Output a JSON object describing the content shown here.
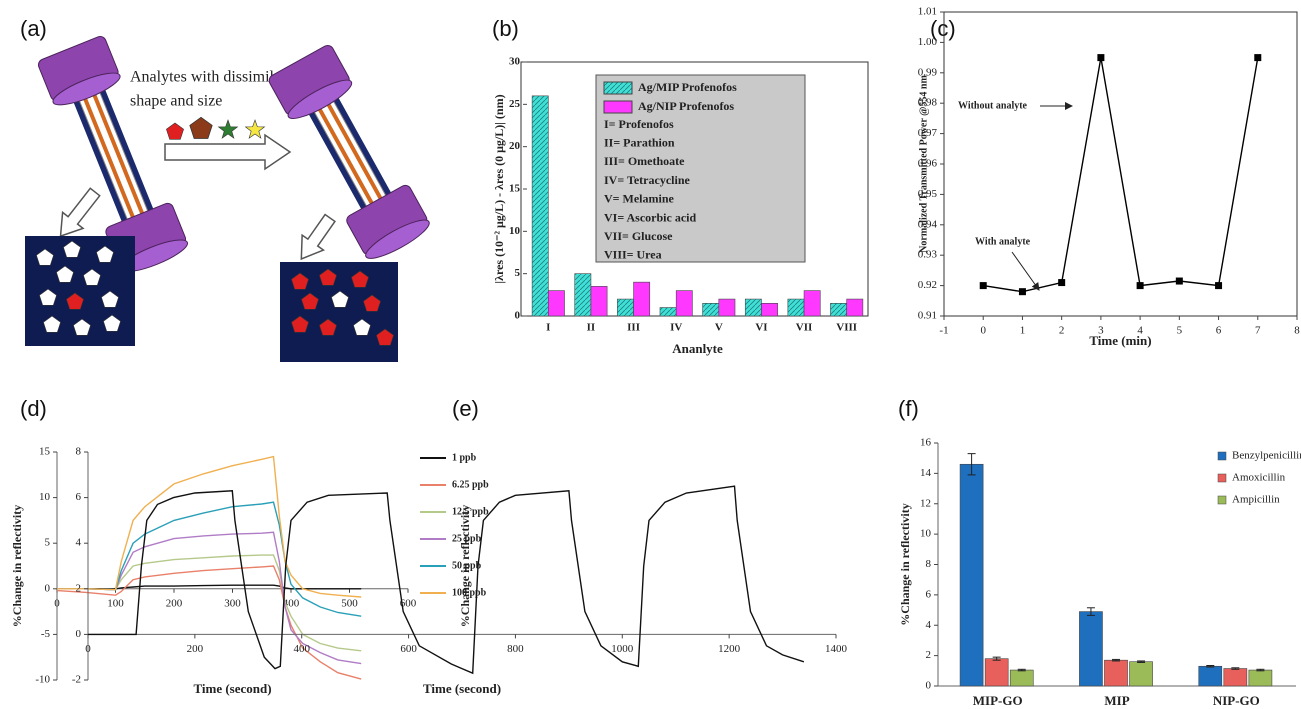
{
  "diagram": {
    "panel_label": "(a)",
    "caption": [
      "Analytes with dissimilar",
      "shape and size"
    ]
  },
  "chart_data": [
    {
      "type": "bar",
      "panel_label": "(b)",
      "ylabel": "|λres (10⁻² μg/L) - λres (0 μg/L)| (nm)",
      "xlabel": "Ananlyte",
      "categories": [
        "I",
        "II",
        "III",
        "IV",
        "V",
        "VI",
        "VII",
        "VIII"
      ],
      "series": [
        {
          "name": "Ag/MIP Profenofos",
          "color": "#3ee0d8",
          "hatch": true,
          "values": [
            26,
            5,
            2,
            1,
            1.5,
            2,
            2,
            1.5
          ]
        },
        {
          "name": "Ag/NIP Profenofos",
          "color": "#ff38ff",
          "values": [
            3,
            3.5,
            4,
            3,
            2,
            1.5,
            3,
            2
          ]
        }
      ],
      "legend_notes": [
        "I= Profenofos",
        "II= Parathion",
        "III= Omethoate",
        "IV= Tetracycline",
        "V= Melamine",
        "VI= Ascorbic acid",
        "VII= Glucose",
        "VIII= Urea"
      ],
      "ylim": [
        0,
        30
      ],
      "yticks": [
        0,
        5,
        10,
        15,
        20,
        25,
        30
      ]
    },
    {
      "type": "line",
      "panel_label": "(c)",
      "ylabel": "Normalized Transmitted Power @554 nm",
      "xlabel": "Time (min)",
      "x": [
        0,
        1,
        2,
        3,
        4,
        5,
        6,
        7
      ],
      "series": [
        {
          "color": "#000000",
          "marker": "square",
          "values": [
            0.92,
            0.918,
            0.921,
            0.995,
            0.92,
            0.9215,
            0.92,
            0.995
          ]
        }
      ],
      "annotations": [
        "Without analyte",
        "With analyte"
      ],
      "xlim": [
        -1,
        8
      ],
      "xticks": [
        -1,
        0,
        1,
        2,
        3,
        4,
        5,
        6,
        7,
        8
      ],
      "ylim": [
        0.91,
        1.01
      ],
      "yticks": [
        0.91,
        0.92,
        0.93,
        0.94,
        0.95,
        0.96,
        0.97,
        0.98,
        0.99,
        {
          "value": 1,
          "label": "1.00"
        },
        1.01
      ]
    },
    {
      "type": "line",
      "panel_label": "(d)",
      "ylabel": "%Change in reflectivity",
      "xlabel": "Time (second)",
      "x": [
        0,
        50,
        100,
        110,
        130,
        150,
        200,
        250,
        300,
        350,
        370,
        380,
        390,
        400,
        420,
        450,
        480,
        520
      ],
      "series": [
        {
          "name": "1 ppb",
          "color": "#111111",
          "values": [
            0,
            0,
            0,
            0.1,
            0.2,
            0.3,
            0.3,
            0.35,
            0.4,
            0.4,
            0.4,
            0.3,
            0.1,
            0,
            0,
            0,
            0,
            0
          ]
        },
        {
          "name": "6.25 ppb",
          "color": "#e8806a",
          "values": [
            -0.2,
            -0.4,
            -0.7,
            -0.3,
            1,
            1.3,
            1.7,
            2,
            2.2,
            2.4,
            2.5,
            1,
            -2,
            -4,
            -6.5,
            -8,
            -9.2,
            -9.9
          ]
        },
        {
          "name": "12.5 ppb",
          "color": "#b5c98a",
          "values": [
            0,
            0,
            -0.1,
            1,
            2.5,
            2.8,
            3.2,
            3.4,
            3.6,
            3.7,
            3.7,
            2,
            -1.5,
            -3,
            -5,
            -6,
            -6.5,
            -6.8
          ]
        },
        {
          "name": "25 ppb",
          "color": "#b07cc6",
          "values": [
            0,
            0,
            -0.1,
            1.5,
            4,
            4.6,
            5.5,
            5.8,
            6,
            6.1,
            6.2,
            3,
            -2,
            -4.5,
            -6,
            -7,
            -7.8,
            -8.2
          ]
        },
        {
          "name": "50 ppb",
          "color": "#2aa0b8",
          "values": [
            0,
            0,
            -0.1,
            2,
            5,
            6,
            7.5,
            8.3,
            9,
            9.3,
            9.5,
            7,
            3,
            0.5,
            -1,
            -2,
            -2.6,
            -3
          ]
        },
        {
          "name": "100 ppb",
          "color": "#f0b050",
          "values": [
            0,
            0,
            -0.1,
            3,
            7.5,
            9,
            11.5,
            12.6,
            13.5,
            14.2,
            14.5,
            8,
            3,
            1.5,
            0,
            -0.5,
            -0.7,
            -0.9
          ]
        }
      ],
      "xlim": [
        0,
        600
      ],
      "xticks": [
        0,
        100,
        200,
        300,
        400,
        500,
        600
      ],
      "ylim": [
        -10,
        15
      ],
      "yticks": [
        -10,
        -5,
        0,
        5,
        10,
        15
      ]
    },
    {
      "type": "line",
      "panel_label": "(e)",
      "ylabel": "%Change in reflectivity",
      "xlabel": "Time (second)",
      "x": [
        0,
        90,
        100,
        110,
        130,
        160,
        200,
        270,
        275,
        300,
        330,
        350,
        360,
        370,
        380,
        410,
        450,
        560,
        565,
        590,
        620,
        680,
        700,
        720,
        730,
        740,
        770,
        800,
        900,
        905,
        930,
        960,
        1000,
        1030,
        1040,
        1050,
        1080,
        1120,
        1210,
        1215,
        1240,
        1270,
        1300,
        1340
      ],
      "series": [
        {
          "color": "#111111",
          "values": [
            0,
            0,
            3,
            5,
            5.7,
            6,
            6.2,
            6.3,
            5,
            1,
            -1,
            -1.5,
            -1.4,
            3,
            5,
            5.8,
            6.1,
            6.2,
            5,
            1,
            -0.5,
            -1.3,
            -1.5,
            -1.7,
            3,
            5,
            5.8,
            6.1,
            6.3,
            5,
            1,
            -0.5,
            -1.2,
            -1.4,
            3,
            5,
            5.8,
            6.2,
            6.5,
            5,
            1,
            -0.5,
            -0.9,
            -1.2
          ]
        }
      ],
      "xlim": [
        0,
        1400
      ],
      "xticks": [
        0,
        200,
        400,
        600,
        800,
        1000,
        1200,
        1400
      ],
      "ylim": [
        -2,
        8
      ],
      "yticks": [
        -2,
        0,
        2,
        4,
        6,
        8
      ]
    },
    {
      "type": "bar",
      "panel_label": "(f)",
      "ylabel": "%Change in reflectivity",
      "categories": [
        "MIP-GO",
        "MIP",
        "NIP-GO"
      ],
      "series": [
        {
          "name": "Benzylpenicillin",
          "color": "#1f6fbf",
          "values": [
            14.6,
            4.9,
            1.3
          ],
          "errors": [
            0.7,
            0.25,
            0.05
          ]
        },
        {
          "name": "Amoxicillin",
          "color": "#e8605c",
          "values": [
            1.8,
            1.7,
            1.15
          ],
          "errors": [
            0.1,
            0.05,
            0.05
          ]
        },
        {
          "name": "Ampicillin",
          "color": "#9bbb59",
          "values": [
            1.05,
            1.6,
            1.05
          ],
          "errors": [
            0.05,
            0.05,
            0.05
          ]
        }
      ],
      "ylim": [
        0,
        16
      ],
      "yticks": [
        0,
        2,
        4,
        6,
        8,
        10,
        12,
        14,
        16
      ]
    }
  ]
}
